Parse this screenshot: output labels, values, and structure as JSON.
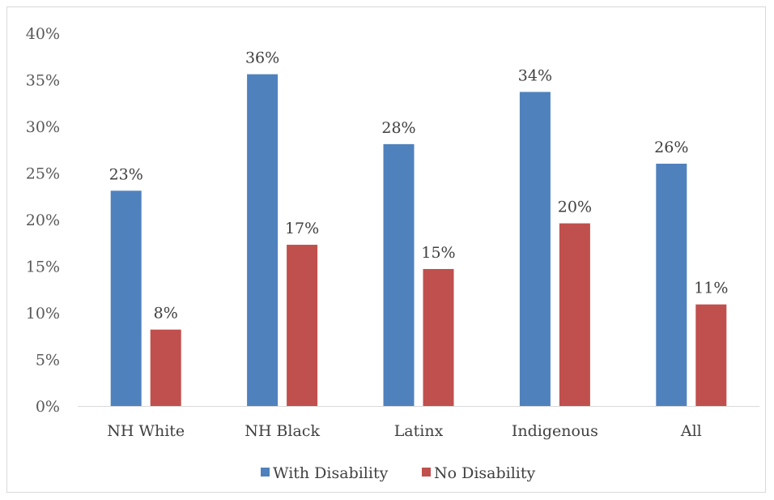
{
  "chart_data": {
    "type": "bar",
    "categories": [
      "NH White",
      "NH Black",
      "Latinx",
      "Indigenous",
      "All"
    ],
    "series": [
      {
        "name": "With Disability",
        "color": "#4f81bd",
        "values": [
          23,
          36,
          28,
          34,
          26
        ],
        "display_values": [
          23.1,
          35.6,
          28.1,
          33.7,
          26.0
        ],
        "labels": [
          "23%",
          "36%",
          "28%",
          "34%",
          "26%"
        ]
      },
      {
        "name": "No Disability",
        "color": "#c0504d",
        "values": [
          8,
          17,
          15,
          20,
          11
        ],
        "display_values": [
          8.2,
          17.3,
          14.7,
          19.6,
          10.9
        ],
        "labels": [
          "8%",
          "17%",
          "15%",
          "20%",
          "11%"
        ]
      }
    ],
    "yticks": [
      "0%",
      "5%",
      "10%",
      "15%",
      "20%",
      "25%",
      "30%",
      "35%",
      "40%"
    ],
    "ylim": [
      0,
      40
    ],
    "gridlines": false,
    "legend_position": "bottom"
  }
}
